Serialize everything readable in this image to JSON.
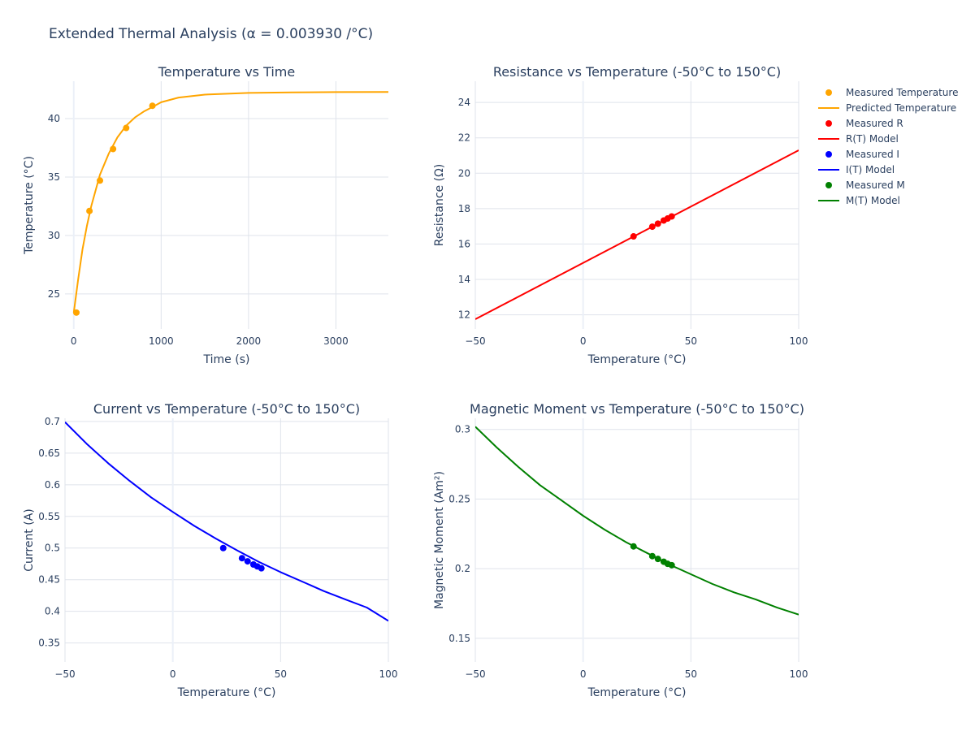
{
  "title": "Extended Thermal Analysis (α = 0.003930 /°C)",
  "colors": {
    "temperature": "#ffa500",
    "resistance": "#ff0000",
    "current": "#0000ff",
    "moment": "#008000",
    "grid": "#dfe3eb",
    "zeroline": "#ebf0f8",
    "text": "#2a3f5f"
  },
  "legend": [
    {
      "label": "Measured Temperature",
      "kind": "marker",
      "color": "#ffa500"
    },
    {
      "label": "Predicted Temperature",
      "kind": "line",
      "color": "#ffa500"
    },
    {
      "label": "Measured R",
      "kind": "marker",
      "color": "#ff0000"
    },
    {
      "label": "R(T) Model",
      "kind": "line",
      "color": "#ff0000"
    },
    {
      "label": "Measured I",
      "kind": "marker",
      "color": "#0000ff"
    },
    {
      "label": "I(T) Model",
      "kind": "line",
      "color": "#0000ff"
    },
    {
      "label": "Measured M",
      "kind": "marker",
      "color": "#008000"
    },
    {
      "label": "M(T) Model",
      "kind": "line",
      "color": "#008000"
    }
  ],
  "chart_data": [
    {
      "type": "line",
      "title": "Temperature vs Time",
      "xlabel": "Time (s)",
      "ylabel": "Temperature (°C)",
      "xlim": [
        -100,
        3600
      ],
      "ylim": [
        22.0,
        43.2
      ],
      "xticks": [
        0,
        1000,
        2000,
        3000
      ],
      "xticklabels": [
        "0",
        "1000",
        "2000",
        "3000"
      ],
      "yticks": [
        25,
        30,
        35,
        40
      ],
      "yticklabels": [
        "25",
        "30",
        "35",
        "40"
      ],
      "series": [
        {
          "name": "Measured Temperature",
          "mode": "markers",
          "color": "#ffa500",
          "x": [
            30,
            180,
            300,
            450,
            600,
            900
          ],
          "y": [
            23.4,
            32.1,
            34.7,
            37.4,
            39.2,
            41.1
          ]
        },
        {
          "name": "Predicted Temperature",
          "mode": "lines",
          "color": "#ffa500",
          "x": [
            0,
            50,
            100,
            150,
            200,
            300,
            400,
            500,
            600,
            700,
            800,
            900,
            1000,
            1200,
            1500,
            2000,
            2500,
            3000,
            3600
          ],
          "y": [
            23.4,
            26.2,
            28.8,
            30.8,
            32.5,
            35.2,
            37.0,
            38.4,
            39.4,
            40.1,
            40.6,
            41.0,
            41.4,
            41.8,
            42.05,
            42.2,
            42.25,
            42.27,
            42.28
          ]
        }
      ]
    },
    {
      "type": "line",
      "title": "Resistance vs Temperature (-50°C to 150°C)",
      "xlabel": "Temperature (°C)",
      "ylabel": "Resistance (Ω)",
      "xlim": [
        -50,
        100
      ],
      "ylim": [
        11.2,
        25.2
      ],
      "xticks": [
        -50,
        0,
        50,
        100
      ],
      "xticklabels": [
        "−50",
        "0",
        "50",
        "100"
      ],
      "yticks": [
        12,
        14,
        16,
        18,
        20,
        22,
        24
      ],
      "yticklabels": [
        "12",
        "14",
        "16",
        "18",
        "20",
        "22",
        "24"
      ],
      "series": [
        {
          "name": "Measured R",
          "mode": "markers",
          "color": "#ff0000",
          "x": [
            23.4,
            32.1,
            34.7,
            37.4,
            39.2,
            41.1
          ],
          "y": [
            16.43,
            16.98,
            17.15,
            17.33,
            17.44,
            17.56
          ]
        },
        {
          "name": "R(T) Model",
          "mode": "lines",
          "color": "#ff0000",
          "x": [
            -50,
            100
          ],
          "y": [
            11.75,
            21.3
          ]
        }
      ]
    },
    {
      "type": "line",
      "title": "Current vs Temperature (-50°C to 150°C)",
      "xlabel": "Temperature (°C)",
      "ylabel": "Current (A)",
      "xlim": [
        -50,
        100
      ],
      "ylim": [
        0.32,
        0.705
      ],
      "xticks": [
        -50,
        0,
        50,
        100
      ],
      "xticklabels": [
        "−50",
        "0",
        "50",
        "100"
      ],
      "yticks": [
        0.35,
        0.4,
        0.45,
        0.5,
        0.55,
        0.6,
        0.65,
        0.7
      ],
      "yticklabels": [
        "0.35",
        "0.4",
        "0.45",
        "0.5",
        "0.55",
        "0.6",
        "0.65",
        "0.7"
      ],
      "series": [
        {
          "name": "Measured I",
          "mode": "markers",
          "color": "#0000ff",
          "x": [
            23.4,
            32.1,
            34.7,
            37.4,
            39.2,
            41.1
          ],
          "y": [
            0.5,
            0.484,
            0.479,
            0.474,
            0.471,
            0.468
          ]
        },
        {
          "name": "I(T) Model",
          "mode": "lines",
          "color": "#0000ff",
          "x": [
            -50,
            -40,
            -30,
            -20,
            -10,
            0,
            10,
            20,
            30,
            40,
            50,
            60,
            70,
            80,
            90,
            100
          ],
          "y": [
            0.699,
            0.665,
            0.634,
            0.606,
            0.58,
            0.557,
            0.535,
            0.515,
            0.496,
            0.478,
            0.462,
            0.447,
            0.432,
            0.419,
            0.406,
            0.385
          ]
        }
      ]
    },
    {
      "type": "line",
      "title": "Magnetic Moment vs Temperature (-50°C to 150°C)",
      "xlabel": "Temperature (°C)",
      "ylabel": "Magnetic Moment (Am²)",
      "xlim": [
        -50,
        100
      ],
      "ylim": [
        0.133,
        0.308
      ],
      "xticks": [
        -50,
        0,
        50,
        100
      ],
      "xticklabels": [
        "−50",
        "0",
        "50",
        "100"
      ],
      "yticks": [
        0.15,
        0.2,
        0.25,
        0.3
      ],
      "yticklabels": [
        "0.15",
        "0.2",
        "0.25",
        "0.3"
      ],
      "series": [
        {
          "name": "Measured M",
          "mode": "markers",
          "color": "#008000",
          "x": [
            23.4,
            32.1,
            34.7,
            37.4,
            39.2,
            41.1
          ],
          "y": [
            0.216,
            0.209,
            0.207,
            0.205,
            0.2035,
            0.2025
          ]
        },
        {
          "name": "M(T) Model",
          "mode": "lines",
          "color": "#008000",
          "x": [
            -50,
            -40,
            -30,
            -20,
            -10,
            0,
            10,
            20,
            30,
            40,
            50,
            60,
            70,
            80,
            90,
            100
          ],
          "y": [
            0.302,
            0.287,
            0.273,
            0.26,
            0.249,
            0.238,
            0.228,
            0.219,
            0.211,
            0.203,
            0.196,
            0.189,
            0.183,
            0.178,
            0.172,
            0.167
          ]
        }
      ]
    }
  ]
}
